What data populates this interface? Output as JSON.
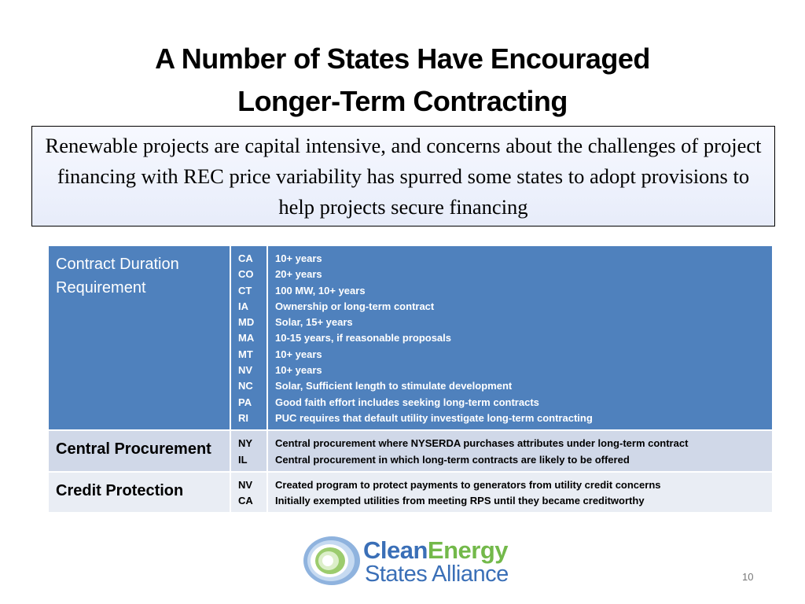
{
  "slide": {
    "title_lines": [
      "A Number of States Have Encouraged",
      "Longer-Term Contracting"
    ],
    "callout": "Renewable projects are capital intensive, and concerns about the challenges of project financing with REC price variability has spurred some states to adopt provisions to help projects secure financing",
    "page_number": "10"
  },
  "table": {
    "rows": [
      {
        "category": "Contract Duration Requirement",
        "states": [
          "CA",
          "CO",
          "CT",
          "IA",
          "MD",
          "MA",
          "MT",
          "NV",
          "NC",
          "PA",
          "RI"
        ],
        "details": [
          "10+ years",
          "20+ years",
          "100 MW, 10+ years",
          "Ownership or long-term contract",
          "Solar, 15+ years",
          "10-15 years, if reasonable proposals",
          "10+ years",
          "10+ years",
          "Solar, Sufficient length to stimulate development",
          "Good faith effort includes seeking long-term contracts",
          "PUC requires that default utility investigate long-term contracting"
        ]
      },
      {
        "category": "Central Procurement",
        "states": [
          "NY",
          "IL"
        ],
        "details": [
          "Central procurement where NYSERDA purchases attributes under long-term contract",
          "Central procurement in which  long-term contracts are likely to be offered"
        ]
      },
      {
        "category": "Credit Protection",
        "states": [
          "NV",
          "CA"
        ],
        "details": [
          "Created program to protect payments to generators from utility credit concerns",
          "Initially exempted utilities from meeting RPS until they became creditworthy"
        ]
      }
    ]
  },
  "logo": {
    "word_clean": "Clean",
    "word_energy": "Energy",
    "line2": "States Alliance"
  },
  "colors": {
    "header_row": "#4f81bd",
    "row_light": "#d0d8e8",
    "row_lighter": "#e9edf4",
    "logo_blue": "#3a6fb7",
    "logo_green": "#73b94a"
  }
}
